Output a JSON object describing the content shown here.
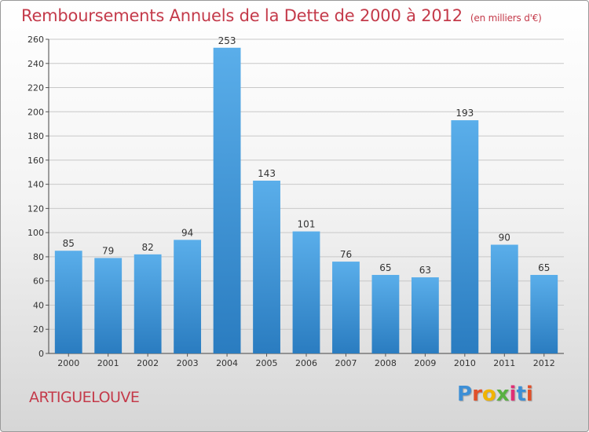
{
  "header": {
    "title": "Remboursements Annuels de la Dette de 2000 à 2012",
    "subtitle": "(en milliers d'€)"
  },
  "footer": {
    "commune": "ARTIGUELOUVE",
    "logo_letters": [
      "P",
      "r",
      "o",
      "x",
      "i",
      "t",
      "i"
    ],
    "logo_colors": [
      "#3d8fd6",
      "#e0502a",
      "#f0b400",
      "#59b142",
      "#e02f75",
      "#3d8fd6",
      "#e0502a"
    ]
  },
  "colors": {
    "bar_top": "#5aaeea",
    "bar_bottom": "#2a7cc0",
    "title": "#c43a4a",
    "grid": "#c8c8c8"
  },
  "chart_data": {
    "type": "bar",
    "title": "Remboursements Annuels de la Dette de 2000 à 2012",
    "xlabel": "",
    "ylabel": "",
    "categories": [
      "2000",
      "2001",
      "2002",
      "2003",
      "2004",
      "2005",
      "2006",
      "2007",
      "2008",
      "2009",
      "2010",
      "2011",
      "2012"
    ],
    "values": [
      85,
      79,
      82,
      94,
      253,
      143,
      101,
      76,
      65,
      63,
      193,
      90,
      65
    ],
    "ylim": [
      0,
      260
    ],
    "yticks": [
      0,
      20,
      40,
      60,
      80,
      100,
      120,
      140,
      160,
      180,
      200,
      220,
      240,
      260
    ],
    "grid": true,
    "data_labels": true
  }
}
